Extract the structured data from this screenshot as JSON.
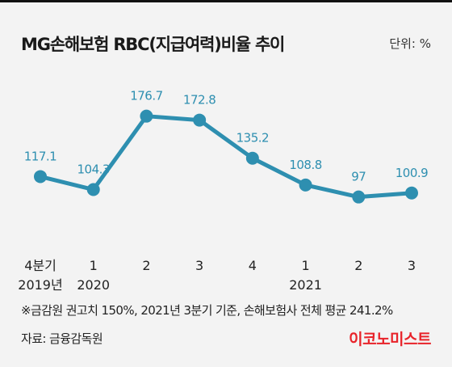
{
  "header": {
    "title": "MG손해보험 RBC(지급여력)비율 추이",
    "unit": "단위: %"
  },
  "chart_data": {
    "type": "line",
    "title": "MG손해보험 RBC(지급여력)비율 추이",
    "ylabel": "",
    "xlabel": "",
    "unit": "%",
    "categories": [
      "4분기",
      "1",
      "2",
      "3",
      "4",
      "1",
      "2",
      "3"
    ],
    "year_labels": [
      "2019년",
      "2020",
      "",
      "",
      "",
      "2021",
      "",
      ""
    ],
    "values": [
      117.1,
      104.3,
      176.7,
      172.8,
      135.2,
      108.8,
      97,
      100.9
    ],
    "value_labels": [
      "117.1",
      "104.3",
      "176.7",
      "172.8",
      "135.2",
      "108.8",
      "97",
      "100.9"
    ],
    "ylim": [
      80,
      190
    ],
    "grid": false,
    "colors": {
      "line": "#2e8fb0",
      "label": "#2e8fb0"
    }
  },
  "footer": {
    "footnote": "※금감원 권고치 150%, 2021년 3분기 기준, 손해보험사 전체 평균 241.2%",
    "source": "자료: 금융감독원",
    "brand": "이코노미스트"
  }
}
